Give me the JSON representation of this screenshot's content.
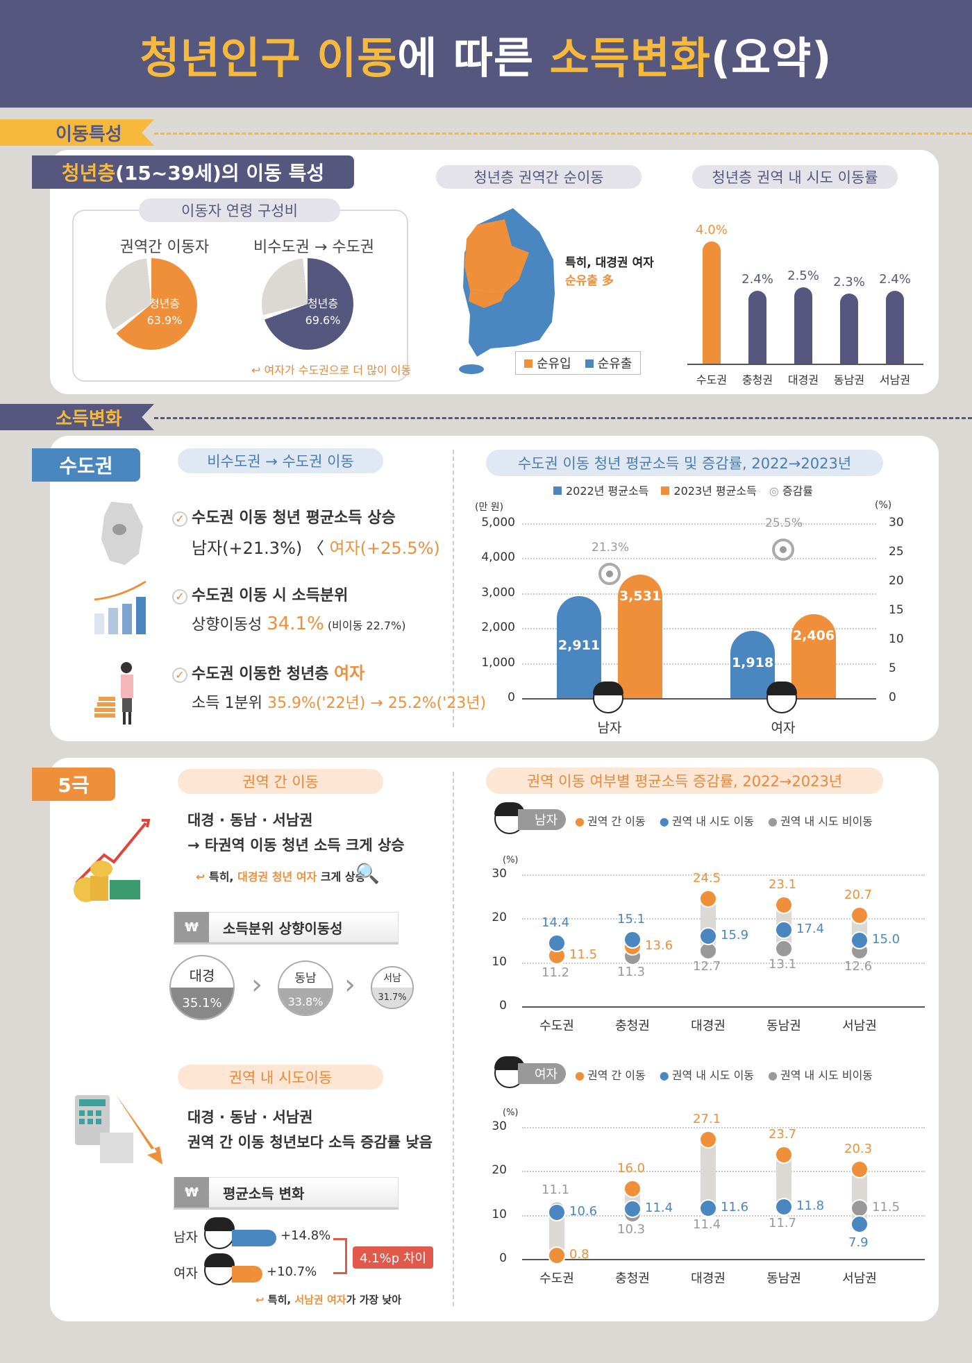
{
  "header": {
    "title_parts": [
      {
        "text": "청년인구 이동",
        "tone": "y"
      },
      {
        "text": "에 따른 ",
        "tone": "w"
      },
      {
        "text": "소득변화",
        "tone": "y"
      },
      {
        "text": "(요약)",
        "tone": "w"
      }
    ]
  },
  "sections": {
    "movement": "이동특성",
    "income": "소득변화"
  },
  "movement": {
    "tag_highlight": "청년층",
    "tag_rest": "(15~39세)의 이동 특성",
    "age_comp": {
      "title": "이동자 연령 구성비",
      "left": {
        "label": "권역간 이동자",
        "slice_label": "청년층",
        "value": "63.9%",
        "color": "#ef8f3a"
      },
      "right": {
        "label": "비수도권 → 수도권",
        "slice_label": "청년층",
        "value": "69.6%",
        "color": "#55577f"
      },
      "note": "여자가 수도권으로 더 많이 이동"
    },
    "map": {
      "title": "청년층 권역간 순이동",
      "note_line1": "특히, 대경권 여자",
      "note_line2": "순유출 多",
      "legend": [
        {
          "label": "순유입",
          "color": "#ef8f3a"
        },
        {
          "label": "순유출",
          "color": "#4a86c0"
        }
      ]
    },
    "intra_rate": {
      "title": "청년층 권역 내 시도 이동률"
    }
  },
  "capital": {
    "tag": "수도권",
    "pill": "비수도권 → 수도권 이동",
    "items": [
      {
        "line1": "수도권 이동 청년 평균소득 상승",
        "line2a": "남자(+21.3%) 〈 ",
        "line2b": "여자(+25.5%)",
        "line2c": ""
      },
      {
        "line1": "수도권 이동 시 소득분위",
        "line2a": "상향이동성 ",
        "line2b": "34.1%",
        "line2c": " (비이동 22.7%)"
      },
      {
        "line1a": "수도권 이동한 청년층 ",
        "line1b": "여자",
        "line2a": "소득 1분위 ",
        "line2b": "35.9%('22년) → 25.2%('23년)",
        "line2c": ""
      }
    ],
    "chart_title": "수도권 이동 청년 평균소득 및 증감률, 2022→2023년",
    "legend": [
      "2022년 평균소득",
      "2023년 평균소득",
      "증감률"
    ],
    "y_left_unit": "(만 원)",
    "y_right_unit": "(%)"
  },
  "five": {
    "tag": "5극",
    "inter": {
      "pill": "권역 간 이동",
      "line1": "대경 · 동남 · 서남권",
      "line2": "→ 타권역 이동 청년 소득 크게 상승",
      "note_a": "특히, ",
      "note_b": "대경권 청년 여자",
      "note_c": " 크게 상승",
      "subhead": "소득분위 상향이동성",
      "circles": [
        {
          "name": "대경",
          "value": "35.1%"
        },
        {
          "name": "동남",
          "value": "33.8%"
        },
        {
          "name": "서남",
          "value": "31.7%"
        }
      ]
    },
    "intra": {
      "pill": "권역 내 시도이동",
      "line1": "대경 · 동남 · 서남권",
      "line2": "권역 간 이동 청년보다 소득 증감률 낮음",
      "subhead": "평균소득 변화",
      "male_label": "남자",
      "male_value": "+14.8%",
      "female_label": "여자",
      "female_value": "+10.7%",
      "diff": "4.1%p 차이",
      "note_a": "특히, ",
      "note_b": "서남권 여자",
      "note_c": "가 가장 낮아"
    },
    "chart_title": "권역 이동 여부별 평균소득 증감률, 2022→2023년",
    "male_pill": "남자",
    "female_pill": "여자",
    "legend": [
      "권역 간 이동",
      "권역 내 시도 이동",
      "권역 내 시도 비이동"
    ],
    "unit": "(%)"
  },
  "chart_data": [
    {
      "type": "pie",
      "title": "이동자 연령 구성비 - 권역간 이동자",
      "categories": [
        "청년층",
        "기타"
      ],
      "values": [
        63.9,
        36.1
      ]
    },
    {
      "type": "pie",
      "title": "이동자 연령 구성비 - 비수도권 → 수도권",
      "categories": [
        "청년층",
        "기타"
      ],
      "values": [
        69.6,
        30.4
      ]
    },
    {
      "type": "bar",
      "title": "청년층 권역 내 시도 이동률",
      "categories": [
        "수도권",
        "충청권",
        "대경권",
        "동남권",
        "서남권"
      ],
      "values": [
        4.0,
        2.4,
        2.5,
        2.3,
        2.4
      ],
      "labels": [
        "4.0%",
        "2.4%",
        "2.5%",
        "2.3%",
        "2.4%"
      ],
      "highlight": "수도권",
      "ylim": [
        0,
        4.5
      ]
    },
    {
      "type": "bar",
      "title": "수도권 이동 청년 평균소득 및 증감률, 2022→2023년",
      "categories": [
        "남자",
        "여자"
      ],
      "series": [
        {
          "name": "2022년 평균소득",
          "values": [
            2911,
            1918
          ],
          "color": "#4a86c0"
        },
        {
          "name": "2023년 평균소득",
          "values": [
            3531,
            2406
          ],
          "color": "#ef8f3a"
        },
        {
          "name": "증감률",
          "values": [
            21.3,
            25.5
          ],
          "axis": "right",
          "marker": "ring"
        }
      ],
      "ylabel": "(만 원)",
      "ylabel_right": "(%)",
      "ylim": [
        0,
        5000
      ],
      "ylim_right": [
        0,
        30
      ],
      "yticks": [
        "5,000",
        "4,000",
        "3,000",
        "2,000",
        "1,000",
        "0"
      ],
      "yticks_right": [
        "30",
        "25",
        "20",
        "15",
        "10",
        "5",
        "0"
      ],
      "grid": true
    },
    {
      "type": "scatter",
      "title": "권역 이동 여부별 평균소득 증감률, 2022→2023년 - 남자",
      "categories": [
        "수도권",
        "충청권",
        "대경권",
        "동남권",
        "서남권"
      ],
      "series": [
        {
          "name": "권역 간 이동",
          "values": [
            11.5,
            13.6,
            24.5,
            23.1,
            20.7
          ]
        },
        {
          "name": "권역 내 시도 이동",
          "values": [
            14.4,
            15.1,
            15.9,
            17.4,
            15.0
          ]
        },
        {
          "name": "권역 내 시도 비이동",
          "values": [
            11.2,
            11.3,
            12.7,
            13.1,
            12.6
          ]
        }
      ],
      "ylabel": "(%)",
      "ylim": [
        0,
        30
      ],
      "yticks": [
        "30",
        "20",
        "10",
        "0"
      ],
      "grid": true
    },
    {
      "type": "scatter",
      "title": "권역 이동 여부별 평균소득 증감률, 2022→2023년 - 여자",
      "categories": [
        "수도권",
        "충청권",
        "대경권",
        "동남권",
        "서남권"
      ],
      "series": [
        {
          "name": "권역 간 이동",
          "values": [
            0.8,
            16.0,
            27.1,
            23.7,
            20.3
          ]
        },
        {
          "name": "권역 내 시도 이동",
          "values": [
            10.6,
            11.4,
            11.6,
            11.8,
            7.9
          ]
        },
        {
          "name": "권역 내 시도 비이동",
          "values": [
            11.1,
            10.3,
            11.4,
            11.7,
            11.5
          ]
        }
      ],
      "ylabel": "(%)",
      "ylim": [
        0,
        30
      ],
      "yticks": [
        "30",
        "20",
        "10",
        "0"
      ],
      "grid": true
    },
    {
      "type": "bar",
      "title": "평균소득 변화 (권역 내 시도이동)",
      "categories": [
        "남자",
        "여자"
      ],
      "values": [
        14.8,
        10.7
      ],
      "labels": [
        "+14.8%",
        "+10.7%"
      ],
      "annotation": "4.1%p 차이"
    },
    {
      "type": "table",
      "title": "소득분위 상향이동성",
      "categories": [
        "대경",
        "동남",
        "서남"
      ],
      "values": [
        35.1,
        33.8,
        31.7
      ]
    }
  ]
}
